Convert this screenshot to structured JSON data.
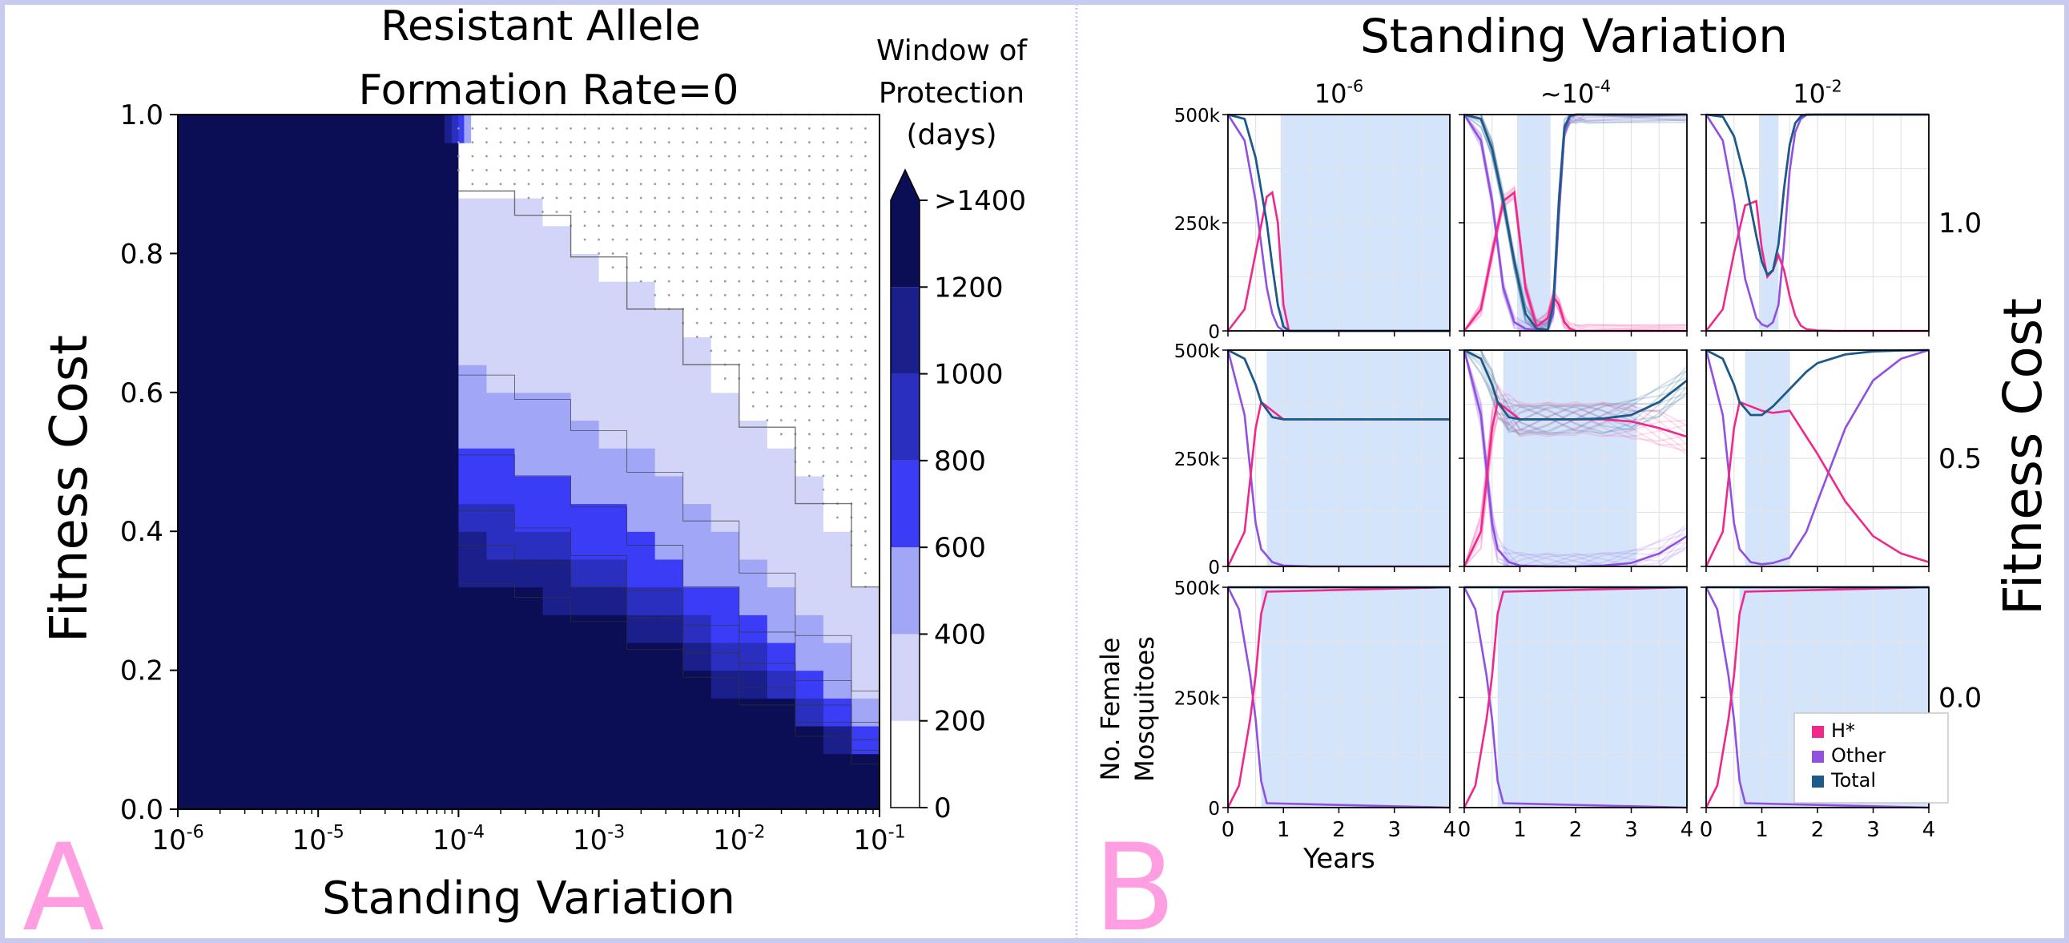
{
  "colors": {
    "frame": "#c8caf0",
    "panel_letter": "#ff9ee0",
    "cmap": [
      "#ffffff",
      "#d2d4f8",
      "#a2a6f6",
      "#3a3df5",
      "#2a2fc0",
      "#1a1f8c",
      "#0b0d55"
    ],
    "shade": "#d4e5fb",
    "hstar": "#f0288c",
    "other": "#9050e0",
    "total": "#1d5a8a",
    "grid": "#e4e4e4"
  },
  "panel_labels": {
    "a": "A",
    "b": "B"
  },
  "chart_data": [
    {
      "type": "heatmap",
      "title_lines": [
        "Resistant Allele",
        "Formation Rate=0"
      ],
      "xlabel": "Standing Variation",
      "ylabel": "Fitness Cost",
      "xscale": "log",
      "xlim_exp": [
        -6,
        -1
      ],
      "ylim": [
        0,
        1
      ],
      "x_tick_labels": [
        {
          "exp": -6,
          "text": "10",
          "sup": "-6"
        },
        {
          "exp": -5,
          "text": "10",
          "sup": "-5"
        },
        {
          "exp": -4,
          "text": "10",
          "sup": "-4"
        },
        {
          "exp": -3,
          "text": "10",
          "sup": "-3"
        },
        {
          "exp": -2,
          "text": "10",
          "sup": "-2"
        },
        {
          "exp": -1,
          "text": "10",
          "sup": "-1"
        }
      ],
      "y_ticks": [
        "0.0",
        "0.2",
        "0.4",
        "0.6",
        "0.8",
        "1.0"
      ],
      "colorbar": {
        "title_lines": [
          "Window of",
          "Protection",
          "(days)"
        ],
        "ticks": [
          "0",
          "200",
          "400",
          "600",
          "800",
          "1000",
          "1200",
          ">1400"
        ],
        "levels": [
          0,
          200,
          400,
          600,
          800,
          1000,
          1200,
          1400
        ]
      },
      "boundary_fitness_cost": {
        "x_exp": [
          -4.0,
          -3.6,
          -3.2,
          -2.8,
          -2.4,
          -2.0,
          -1.6,
          -1.2,
          -1.0
        ],
        "level_1": [
          0.9,
          0.88,
          0.83,
          0.76,
          0.68,
          0.6,
          0.5,
          0.38,
          0.26
        ],
        "level_2": [
          0.64,
          0.61,
          0.57,
          0.52,
          0.45,
          0.38,
          0.3,
          0.2,
          0.14
        ],
        "level_3": [
          0.52,
          0.5,
          0.46,
          0.41,
          0.35,
          0.29,
          0.22,
          0.15,
          0.1
        ],
        "level_4": [
          0.44,
          0.42,
          0.39,
          0.34,
          0.29,
          0.24,
          0.18,
          0.12,
          0.08
        ],
        "level_5": [
          0.39,
          0.37,
          0.34,
          0.3,
          0.25,
          0.2,
          0.15,
          0.1,
          0.07
        ],
        "level_6": [
          0.33,
          0.32,
          0.29,
          0.25,
          0.21,
          0.17,
          0.13,
          0.08,
          0.05
        ]
      }
    },
    {
      "type": "line",
      "title": "Standing Variation",
      "ylabel_lines": [
        "No. Female",
        "Mosquitoes"
      ],
      "xlabel": "Years",
      "row_title": "Fitness Cost",
      "xlim": [
        0,
        4
      ],
      "ylim": [
        0,
        500000
      ],
      "x_ticks": [
        "0",
        "1",
        "2",
        "3",
        "4"
      ],
      "y_ticks": [
        "0",
        "250k",
        "500k"
      ],
      "columns": [
        {
          "text": "10",
          "sup": "-6"
        },
        {
          "text": "~10",
          "sup": "-4"
        },
        {
          "text": "10",
          "sup": "-2"
        }
      ],
      "rows": [
        "1.0",
        "0.5",
        "0.0"
      ],
      "legend": [
        "H*",
        "Other",
        "Total"
      ],
      "panels": [
        {
          "shade": [
            0.95,
            4.0
          ],
          "x": [
            0,
            0.3,
            0.5,
            0.7,
            0.8,
            0.9,
            1.0,
            1.1,
            4.0
          ],
          "total": [
            500000,
            490000,
            400000,
            250000,
            150000,
            60000,
            10000,
            0,
            0
          ],
          "other": [
            500000,
            440000,
            300000,
            100000,
            40000,
            10000,
            0,
            0,
            0
          ],
          "hstar": [
            0,
            50000,
            180000,
            310000,
            320000,
            250000,
            60000,
            0,
            0
          ]
        },
        {
          "shade": [
            0.95,
            1.55
          ],
          "x": [
            0,
            0.3,
            0.5,
            0.7,
            0.9,
            1.1,
            1.3,
            1.5,
            1.6,
            1.7,
            1.8,
            1.9,
            2.0,
            2.2,
            4.0
          ],
          "total": [
            500000,
            490000,
            420000,
            300000,
            160000,
            40000,
            5000,
            3000,
            60000,
            300000,
            470000,
            498000,
            500000,
            500000,
            500000
          ],
          "other": [
            500000,
            440000,
            300000,
            100000,
            20000,
            5000,
            2000,
            3000,
            40000,
            270000,
            460000,
            495000,
            500000,
            500000,
            500000
          ],
          "hstar": [
            0,
            50000,
            180000,
            300000,
            320000,
            100000,
            10000,
            30000,
            80000,
            60000,
            20000,
            5000,
            0,
            0,
            0
          ]
        },
        {
          "shade": [
            0.95,
            1.3
          ],
          "x": [
            0,
            0.3,
            0.5,
            0.7,
            0.9,
            1.0,
            1.1,
            1.2,
            1.3,
            1.4,
            1.5,
            1.6,
            1.7,
            1.8,
            2.0,
            2.3,
            4.0
          ],
          "total": [
            500000,
            495000,
            450000,
            350000,
            220000,
            160000,
            130000,
            140000,
            200000,
            330000,
            430000,
            480000,
            496000,
            500000,
            500000,
            500000,
            500000
          ],
          "other": [
            500000,
            440000,
            300000,
            120000,
            30000,
            15000,
            10000,
            20000,
            60000,
            200000,
            370000,
            460000,
            490000,
            499000,
            500000,
            500000,
            500000
          ],
          "hstar": [
            0,
            50000,
            180000,
            290000,
            300000,
            190000,
            125000,
            140000,
            175000,
            140000,
            80000,
            35000,
            12000,
            4000,
            1000,
            0,
            0
          ]
        },
        {
          "shade": [
            0.7,
            4.0
          ],
          "x": [
            0,
            0.3,
            0.5,
            0.6,
            0.8,
            1.0,
            1.5,
            4.0
          ],
          "total": [
            500000,
            480000,
            420000,
            380000,
            345000,
            340000,
            340000,
            340000
          ],
          "other": [
            500000,
            350000,
            100000,
            40000,
            10000,
            2000,
            0,
            0
          ],
          "hstar": [
            0,
            80000,
            320000,
            380000,
            360000,
            340000,
            340000,
            340000
          ]
        },
        {
          "shade": [
            0.7,
            3.1
          ],
          "x": [
            0,
            0.3,
            0.5,
            0.6,
            0.8,
            1.0,
            1.5,
            2.0,
            2.5,
            3.0,
            3.5,
            4.0
          ],
          "total": [
            500000,
            480000,
            420000,
            380000,
            345000,
            340000,
            340000,
            340000,
            342000,
            350000,
            380000,
            430000
          ],
          "other": [
            500000,
            350000,
            100000,
            40000,
            10000,
            2000,
            0,
            0,
            2000,
            8000,
            30000,
            70000
          ],
          "hstar": [
            0,
            80000,
            320000,
            380000,
            360000,
            340000,
            340000,
            340000,
            340000,
            335000,
            320000,
            300000
          ]
        },
        {
          "shade": [
            0.7,
            1.5
          ],
          "x": [
            0,
            0.3,
            0.5,
            0.6,
            0.8,
            1.0,
            1.2,
            1.5,
            1.8,
            2.0,
            2.5,
            3.0,
            3.5,
            4.0
          ],
          "total": [
            500000,
            480000,
            420000,
            380000,
            350000,
            350000,
            370000,
            410000,
            450000,
            470000,
            490000,
            497000,
            499000,
            500000
          ],
          "other": [
            500000,
            350000,
            100000,
            40000,
            10000,
            5000,
            8000,
            20000,
            80000,
            150000,
            320000,
            430000,
            480000,
            500000
          ],
          "hstar": [
            0,
            80000,
            320000,
            380000,
            370000,
            360000,
            355000,
            360000,
            300000,
            260000,
            150000,
            70000,
            30000,
            10000
          ]
        },
        {
          "shade": [
            0.6,
            4.0
          ],
          "x": [
            0,
            0.2,
            0.4,
            0.5,
            0.6,
            0.7,
            4.0
          ],
          "total": [
            500000,
            500000,
            500000,
            500000,
            500000,
            500000,
            500000
          ],
          "other": [
            500000,
            450000,
            300000,
            200000,
            60000,
            10000,
            0
          ],
          "hstar": [
            0,
            50000,
            200000,
            300000,
            440000,
            490000,
            500000
          ]
        },
        {
          "shade": [
            0.6,
            4.0
          ],
          "x": [
            0,
            0.2,
            0.4,
            0.5,
            0.6,
            0.7,
            4.0
          ],
          "total": [
            500000,
            500000,
            500000,
            500000,
            500000,
            500000,
            500000
          ],
          "other": [
            500000,
            450000,
            300000,
            200000,
            60000,
            10000,
            0
          ],
          "hstar": [
            0,
            50000,
            200000,
            300000,
            440000,
            490000,
            500000
          ]
        },
        {
          "shade": [
            0.6,
            4.0
          ],
          "x": [
            0,
            0.2,
            0.4,
            0.5,
            0.6,
            0.7,
            4.0
          ],
          "total": [
            500000,
            500000,
            500000,
            500000,
            500000,
            500000,
            500000
          ],
          "other": [
            500000,
            450000,
            300000,
            200000,
            60000,
            10000,
            0
          ],
          "hstar": [
            0,
            50000,
            200000,
            300000,
            440000,
            490000,
            500000
          ]
        }
      ]
    }
  ]
}
